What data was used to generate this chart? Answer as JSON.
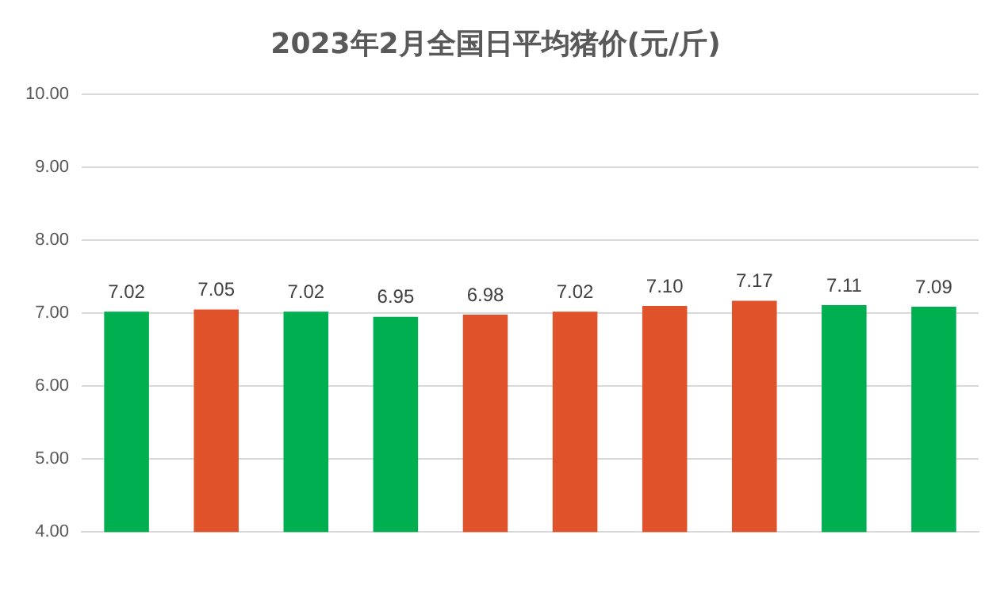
{
  "chart_data": {
    "type": "bar",
    "title": "2023年2月全国日平均猪价(元/斤)",
    "categories": [
      null,
      null,
      null,
      null,
      null,
      null,
      null,
      null,
      null,
      null
    ],
    "values": [
      7.02,
      7.05,
      7.02,
      6.95,
      6.98,
      7.02,
      7.1,
      7.17,
      7.11,
      7.09
    ],
    "value_labels": [
      "7.02",
      "7.05",
      "7.02",
      "6.95",
      "6.98",
      "7.02",
      "7.10",
      "7.17",
      "7.11",
      "7.09"
    ],
    "colors": [
      "#00b050",
      "#e0522a",
      "#00b050",
      "#00b050",
      "#e0522a",
      "#e0522a",
      "#e0522a",
      "#e0522a",
      "#00b050",
      "#00b050"
    ],
    "ylim": [
      4,
      10
    ],
    "yticks": [
      {
        "value": 4,
        "label": "4.00"
      },
      {
        "value": 5,
        "label": "5.00"
      },
      {
        "value": 6,
        "label": "6.00"
      },
      {
        "value": 7,
        "label": "7.00"
      },
      {
        "value": 8,
        "label": "8.00"
      },
      {
        "value": 9,
        "label": "9.00"
      },
      {
        "value": 10,
        "label": "10.00"
      }
    ],
    "grid": "y",
    "legend": false
  }
}
